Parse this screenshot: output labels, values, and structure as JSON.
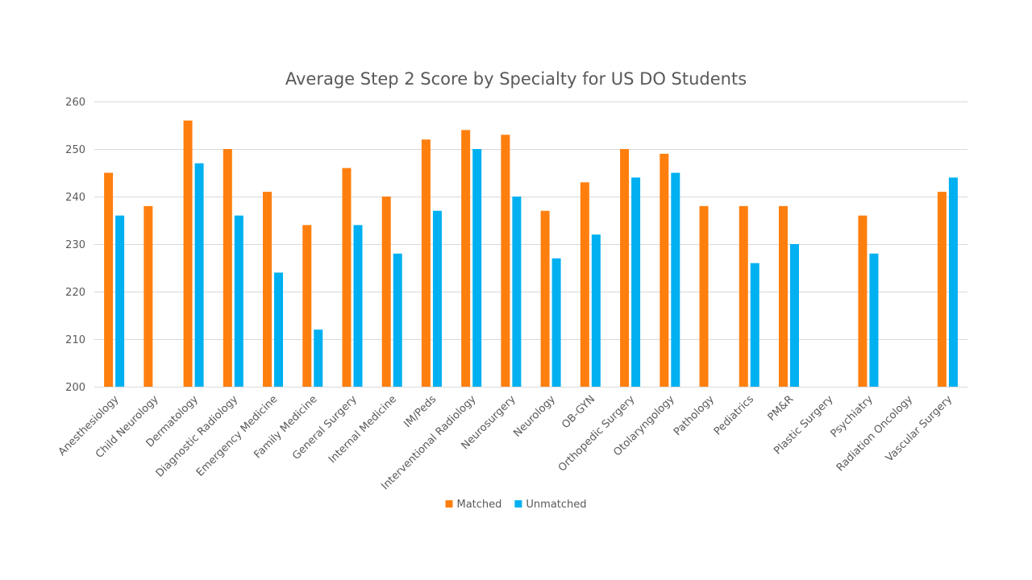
{
  "chart_data": {
    "type": "bar",
    "title": "Average Step 2 Score by Specialty for US DO Students",
    "xlabel": "",
    "ylabel": "",
    "ylim": [
      200,
      260
    ],
    "yticks": [
      200,
      210,
      220,
      230,
      240,
      250,
      260
    ],
    "grid": true,
    "legend_position": "bottom",
    "categories": [
      "Anesthesiology",
      "Child Neurology",
      "Dermatology",
      "Diagnostic Radiology",
      "Emergency Medicine",
      "Family Medicine",
      "General Surgery",
      "Internal Medicine",
      "IM/Peds",
      "Interventional Radiology",
      "Neurosurgery",
      "Neurology",
      "OB-GYN",
      "Orthopedic Surgery",
      "Otolaryngology",
      "Pathology",
      "Pediatrics",
      "PM&R",
      "Plastic Surgery",
      "Psychiatry",
      "Radiation Oncology",
      "Vascular Surgery"
    ],
    "series": [
      {
        "name": "Matched",
        "color": "#ff7f0e",
        "values": [
          245,
          238,
          256,
          250,
          241,
          234,
          246,
          240,
          252,
          254,
          253,
          237,
          243,
          250,
          249,
          238,
          238,
          238,
          null,
          236,
          null,
          241
        ]
      },
      {
        "name": "Unmatched",
        "color": "#00b0f0",
        "values": [
          236,
          null,
          247,
          236,
          224,
          212,
          234,
          228,
          237,
          250,
          240,
          227,
          232,
          244,
          245,
          null,
          226,
          230,
          null,
          228,
          null,
          244
        ]
      }
    ]
  }
}
